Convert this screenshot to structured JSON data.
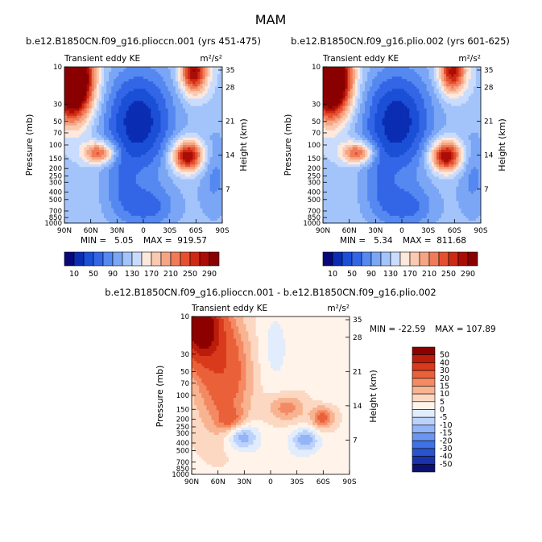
{
  "figure": {
    "title": "MAM"
  },
  "colors": {
    "scale_full": [
      "#08087a",
      "#0a2db3",
      "#1a4fd6",
      "#3366e6",
      "#5588f0",
      "#7aa6f5",
      "#a3c4fa",
      "#cadcfd",
      "#fde8dc",
      "#f9c9b0",
      "#f5a584",
      "#f07b58",
      "#e5502f",
      "#cc2a14",
      "#aa0c06",
      "#8a0000"
    ],
    "scale_diff": [
      "#0c1170",
      "#1a33aa",
      "#2a53cc",
      "#3f72e4",
      "#6b95f0",
      "#93b5f7",
      "#bcd2fb",
      "#e1ecfd",
      "#fff3ea",
      "#fcd8c2",
      "#f8b391",
      "#f38a63",
      "#ea6139",
      "#d93a1c",
      "#bb1c0b",
      "#8c0000"
    ]
  },
  "chart_data": [
    {
      "type": "heatmap",
      "id": "panel1",
      "title": "b.e12.B1850CN.f09_g16.plioccn.001 (yrs 451-475)",
      "left_label": "Transient eddy KE",
      "right_label": "m²/s²",
      "xlabel": "",
      "ylabel": "Pressure (mb)",
      "y2label": "Height (km)",
      "x_ticks": [
        "90N",
        "60N",
        "30N",
        "0",
        "30S",
        "60S",
        "90S"
      ],
      "x_tick_values": [
        90,
        60,
        30,
        0,
        -30,
        -60,
        -90
      ],
      "y_ticks": [
        "10",
        "30",
        "50",
        "70",
        "100",
        "150",
        "200",
        "250",
        "300",
        "400",
        "500",
        "700",
        "850",
        "1000"
      ],
      "y_tick_values": [
        10,
        30,
        50,
        70,
        100,
        150,
        200,
        250,
        300,
        400,
        500,
        700,
        850,
        1000
      ],
      "y2_ticks": [
        "35",
        "28",
        "21",
        "14",
        "7"
      ],
      "y2_tick_values": [
        35,
        28,
        21,
        14,
        7
      ],
      "min_label": "MIN =   5.05",
      "max_label": "MAX =  919.57",
      "colorbar_labels": [
        "10",
        "50",
        "90",
        "130",
        "170",
        "210",
        "250",
        "290"
      ],
      "colorbar_levels": [
        10,
        30,
        50,
        70,
        90,
        110,
        130,
        150,
        170,
        190,
        210,
        230,
        250,
        270,
        290
      ]
    },
    {
      "type": "heatmap",
      "id": "panel2",
      "title": "b.e12.B1850CN.f09_g16.plio.002 (yrs 601-625)",
      "left_label": "Transient eddy KE",
      "right_label": "m²/s²",
      "xlabel": "",
      "ylabel": "Pressure (mb)",
      "y2label": "Height (km)",
      "x_ticks": [
        "90N",
        "60N",
        "30N",
        "0",
        "30S",
        "60S",
        "90S"
      ],
      "x_tick_values": [
        90,
        60,
        30,
        0,
        -30,
        -60,
        -90
      ],
      "y_ticks": [
        "10",
        "30",
        "50",
        "70",
        "100",
        "150",
        "200",
        "250",
        "300",
        "400",
        "500",
        "700",
        "850",
        "1000"
      ],
      "y_tick_values": [
        10,
        30,
        50,
        70,
        100,
        150,
        200,
        250,
        300,
        400,
        500,
        700,
        850,
        1000
      ],
      "y2_ticks": [
        "35",
        "28",
        "21",
        "14",
        "7"
      ],
      "y2_tick_values": [
        35,
        28,
        21,
        14,
        7
      ],
      "min_label": "MIN =   5.34",
      "max_label": "MAX =  811.68",
      "colorbar_labels": [
        "10",
        "50",
        "90",
        "130",
        "170",
        "210",
        "250",
        "290"
      ],
      "colorbar_levels": [
        10,
        30,
        50,
        70,
        90,
        110,
        130,
        150,
        170,
        190,
        210,
        230,
        250,
        270,
        290
      ]
    },
    {
      "type": "heatmap",
      "id": "panel3",
      "title": "b.e12.B1850CN.f09_g16.plioccn.001 - b.e12.B1850CN.f09_g16.plio.002",
      "left_label": "Transient eddy KE",
      "right_label": "m²/s²",
      "xlabel": "",
      "ylabel": "Pressure (mb)",
      "y2label": "Height (km)",
      "x_ticks": [
        "90N",
        "60N",
        "30N",
        "0",
        "30S",
        "60S",
        "90S"
      ],
      "x_tick_values": [
        90,
        60,
        30,
        0,
        -30,
        -60,
        -90
      ],
      "y_ticks": [
        "10",
        "30",
        "50",
        "70",
        "100",
        "150",
        "200",
        "250",
        "300",
        "400",
        "500",
        "700",
        "850",
        "1000"
      ],
      "y_tick_values": [
        10,
        30,
        50,
        70,
        100,
        150,
        200,
        250,
        300,
        400,
        500,
        700,
        850,
        1000
      ],
      "y2_ticks": [
        "35",
        "28",
        "21",
        "14",
        "7"
      ],
      "y2_tick_values": [
        35,
        28,
        21,
        14,
        7
      ],
      "min_label": "MIN = -22.59",
      "max_label": "MAX = 107.89",
      "colorbar_labels": [
        "50",
        "40",
        "30",
        "20",
        "15",
        "10",
        "5",
        "0",
        "-5",
        "-10",
        "-15",
        "-20",
        "-30",
        "-40",
        "-50"
      ],
      "colorbar_levels": [
        50,
        40,
        30,
        20,
        15,
        10,
        5,
        0,
        -5,
        -10,
        -15,
        -20,
        -30,
        -40,
        -50
      ]
    }
  ]
}
